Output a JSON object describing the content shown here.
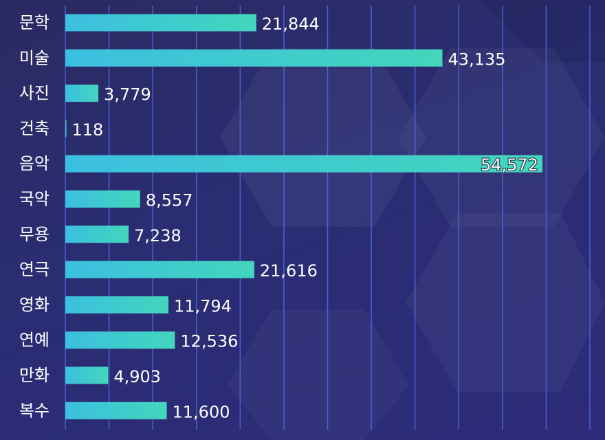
{
  "chart_data": {
    "type": "bar",
    "orientation": "horizontal",
    "categories": [
      "문학",
      "미술",
      "사진",
      "건축",
      "음악",
      "국악",
      "무용",
      "연극",
      "영화",
      "연예",
      "만화",
      "복수"
    ],
    "values": [
      21844,
      43135,
      3779,
      118,
      54572,
      8557,
      7238,
      21616,
      11794,
      12536,
      4903,
      11600
    ],
    "value_labels": [
      "21,844",
      "43,135",
      "3,779",
      "118",
      "54,572",
      "8,557",
      "7,238",
      "21,616",
      "11,794",
      "12,536",
      "4,903",
      "11,600"
    ],
    "title": "",
    "xlabel": "",
    "ylabel": "",
    "xlim": [
      0,
      60000
    ],
    "grid": true,
    "legend": "none"
  },
  "colors": {
    "bar_start": "#3bbfe0",
    "bar_end": "#43d6bc",
    "grid": "#4f6fe8",
    "text": "#ffffff"
  }
}
